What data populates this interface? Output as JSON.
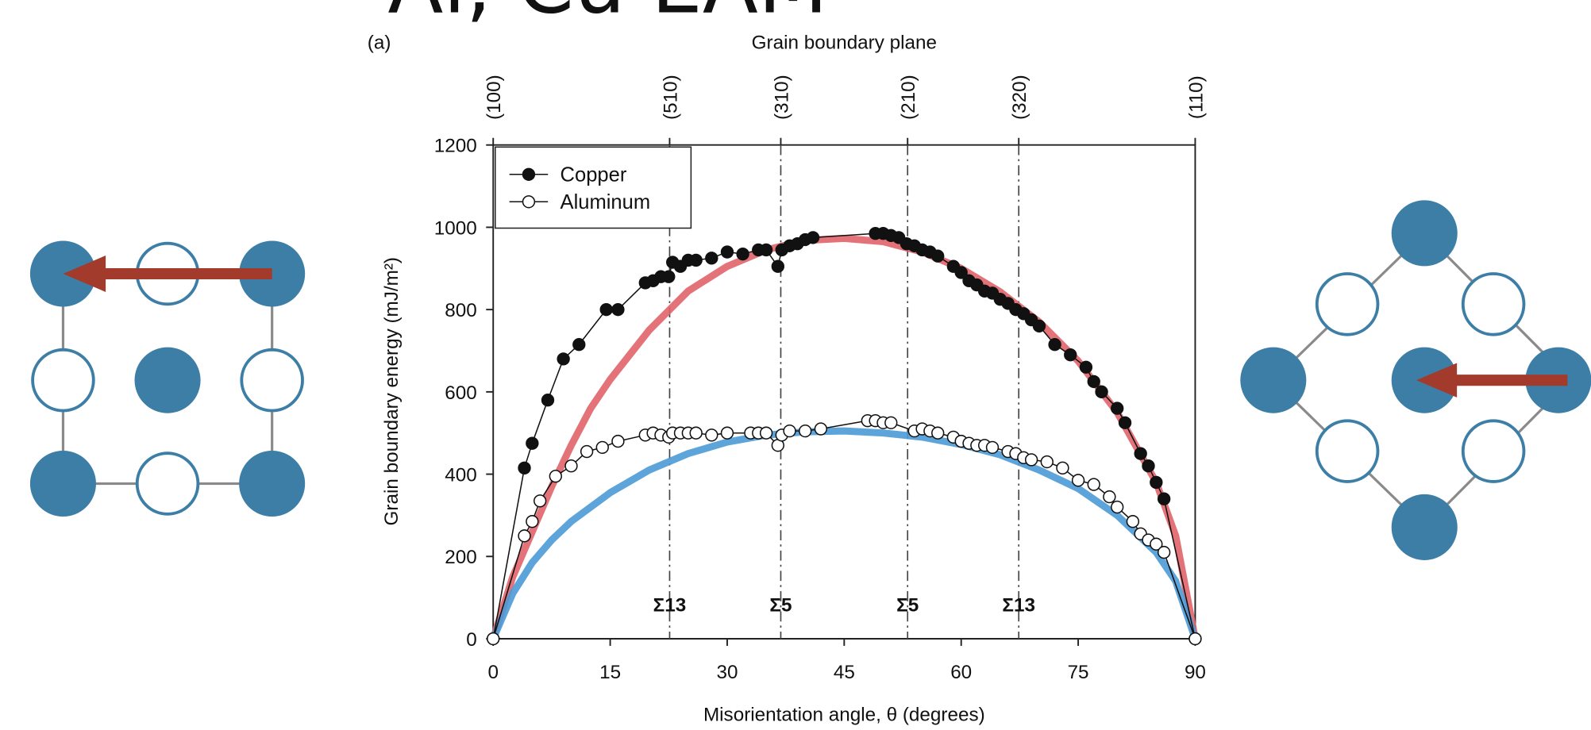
{
  "chart_data": {
    "type": "line",
    "title": "Al, Cu EAM",
    "panel_label": "(a)",
    "top_axis_title": "Grain boundary plane",
    "x_label": "Misorientation angle, θ (degrees)",
    "y_label": "Grain boundary energy (mJ/m²)",
    "xlim": [
      0,
      90
    ],
    "ylim": [
      0,
      1200
    ],
    "xticks": [
      0,
      15,
      30,
      45,
      60,
      75,
      90
    ],
    "yticks": [
      0,
      200,
      400,
      600,
      800,
      1000,
      1200
    ],
    "top_ticks": [
      {
        "value": 0,
        "label": "(100)"
      },
      {
        "value": 22.62,
        "label": "(510)"
      },
      {
        "value": 36.87,
        "label": "(310)"
      },
      {
        "value": 53.13,
        "label": "(210)"
      },
      {
        "value": 67.38,
        "label": "(320)"
      },
      {
        "value": 90,
        "label": "(110)"
      }
    ],
    "reference_lines": [
      {
        "value": 22.62,
        "label": "Σ13"
      },
      {
        "value": 36.87,
        "label": "Σ5"
      },
      {
        "value": 53.13,
        "label": "Σ5"
      },
      {
        "value": 67.38,
        "label": "Σ13"
      }
    ],
    "legend_position": "upper-left",
    "series": [
      {
        "color": "#e0646a",
        "marker": "none",
        "x": [
          0,
          2.5,
          5,
          7.5,
          10,
          12.5,
          15,
          20,
          25,
          30,
          35,
          40,
          45,
          50,
          55,
          60,
          65,
          70,
          75,
          80,
          85,
          87.5,
          90
        ],
        "values": [
          0,
          150,
          260,
          370,
          470,
          560,
          630,
          750,
          845,
          905,
          945,
          968,
          973,
          965,
          940,
          900,
          843,
          770,
          675,
          550,
          380,
          250,
          0
        ]
      },
      {
        "color": "#4a9ad6",
        "marker": "none",
        "x": [
          0,
          2.5,
          5,
          7.5,
          10,
          15,
          20,
          25,
          30,
          35,
          40,
          45,
          50,
          55,
          60,
          65,
          70,
          75,
          80,
          85,
          87.5,
          90
        ],
        "values": [
          0,
          110,
          185,
          240,
          285,
          355,
          410,
          450,
          478,
          495,
          503,
          505,
          500,
          490,
          472,
          447,
          410,
          365,
          300,
          210,
          140,
          0
        ]
      },
      {
        "name": "Copper",
        "color": "#111111",
        "marker": "filled",
        "x": [
          0,
          4,
          5,
          7,
          9,
          11,
          14.5,
          16,
          19.5,
          20.5,
          21.5,
          22.5,
          23,
          24,
          25,
          26,
          28,
          30,
          32,
          34,
          35,
          36.5,
          37,
          38,
          39,
          40,
          41,
          49,
          50,
          51,
          52,
          53,
          54,
          55,
          56,
          57,
          59,
          60,
          61,
          62,
          63,
          64,
          65,
          66,
          67,
          68,
          69,
          70,
          72,
          74,
          76,
          77,
          78,
          80,
          81,
          83,
          84,
          85,
          86,
          90
        ],
        "values": [
          0,
          415,
          475,
          580,
          680,
          715,
          800,
          800,
          865,
          870,
          880,
          880,
          915,
          905,
          920,
          920,
          925,
          940,
          935,
          945,
          945,
          905,
          945,
          955,
          960,
          970,
          975,
          985,
          985,
          980,
          975,
          960,
          955,
          945,
          940,
          930,
          905,
          890,
          870,
          860,
          845,
          840,
          825,
          815,
          800,
          790,
          775,
          760,
          715,
          690,
          660,
          625,
          600,
          560,
          525,
          450,
          420,
          380,
          340,
          0
        ]
      },
      {
        "name": "Aluminum",
        "color": "#111111",
        "marker": "open",
        "x": [
          0,
          4,
          5,
          6,
          8,
          10,
          12,
          14,
          16,
          19.5,
          20.5,
          21.5,
          22.5,
          23,
          24,
          25,
          26,
          28,
          30,
          33,
          34,
          35,
          36.5,
          37,
          38,
          40,
          42,
          48,
          49,
          50,
          51,
          54,
          55,
          56,
          57,
          59,
          60,
          61,
          62,
          63,
          64,
          66,
          67,
          68,
          69,
          71,
          73,
          75,
          77,
          79,
          80,
          82,
          83,
          84,
          85,
          86,
          90
        ],
        "values": [
          0,
          250,
          285,
          335,
          395,
          420,
          455,
          465,
          480,
          495,
          500,
          495,
          490,
          500,
          500,
          500,
          500,
          495,
          500,
          500,
          500,
          500,
          470,
          495,
          505,
          505,
          510,
          530,
          530,
          525,
          525,
          505,
          510,
          505,
          500,
          490,
          480,
          475,
          470,
          470,
          465,
          455,
          450,
          440,
          435,
          430,
          415,
          385,
          375,
          345,
          320,
          285,
          255,
          240,
          230,
          210,
          0
        ]
      }
    ]
  }
}
